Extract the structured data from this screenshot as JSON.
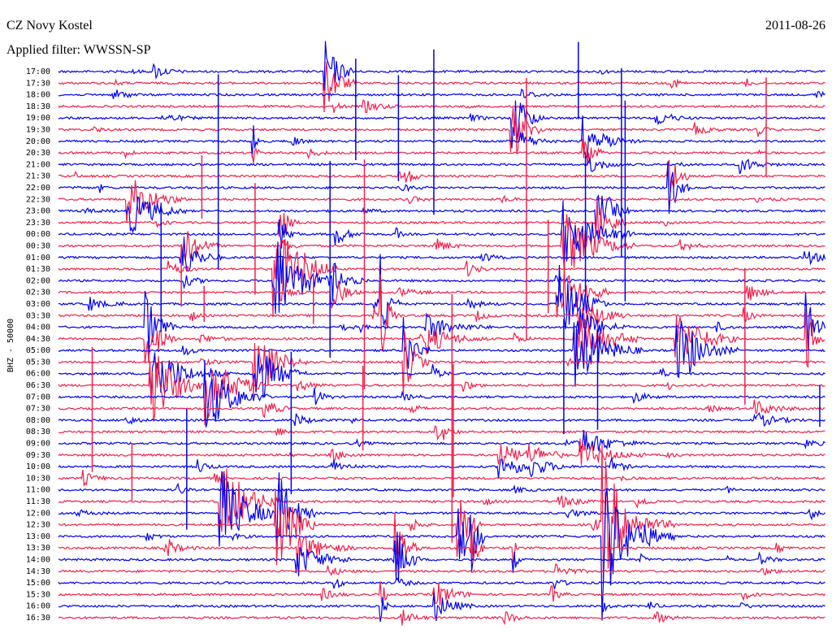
{
  "header": {
    "station": "CZ Novy Kostel",
    "filter": "Applied filter: WWSSN-SP",
    "date": "2011-08-26"
  },
  "side_label": "BHZ - 50000",
  "rows": [
    "17:00",
    "17:30",
    "18:00",
    "18:30",
    "19:00",
    "19:30",
    "20:00",
    "20:30",
    "21:00",
    "21:30",
    "22:00",
    "22:30",
    "23:00",
    "23:30",
    "00:00",
    "00:30",
    "01:00",
    "01:30",
    "02:00",
    "02:30",
    "03:00",
    "03:30",
    "04:00",
    "04:30",
    "05:00",
    "05:30",
    "06:00",
    "06:30",
    "07:00",
    "07:30",
    "08:00",
    "08:30",
    "09:00",
    "09:30",
    "10:00",
    "10:30",
    "11:00",
    "11:30",
    "12:00",
    "12:30",
    "13:00",
    "13:30",
    "14:00",
    "14:30",
    "15:00",
    "15:30",
    "16:00",
    "16:30"
  ]
}
